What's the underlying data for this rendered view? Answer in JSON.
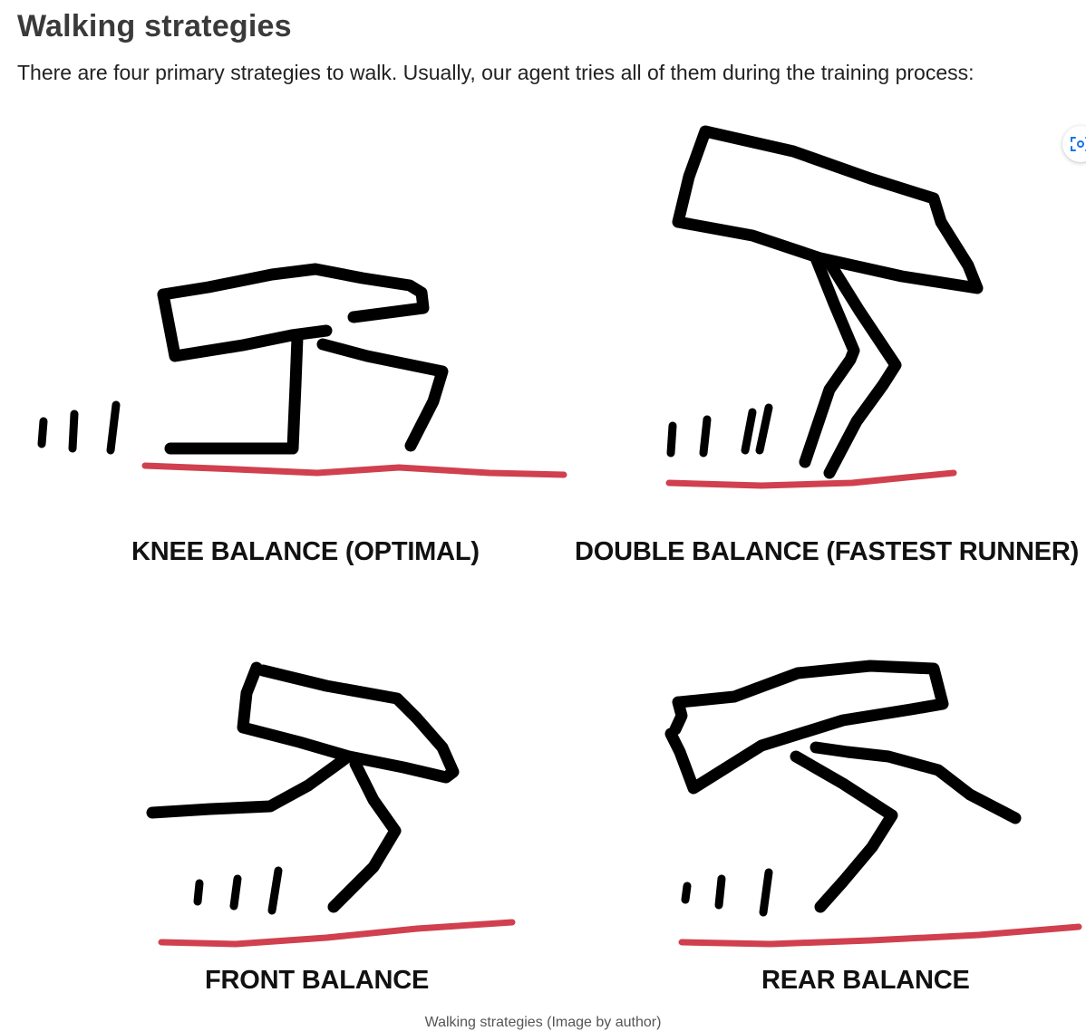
{
  "article": {
    "heading": "Walking strategies",
    "intro": "There are four primary strategies to walk. Usually, our agent tries all of them during the training process:"
  },
  "figure": {
    "panels": [
      {
        "label": "KNEE BALANCE (OPTIMAL)"
      },
      {
        "label": "DOUBLE BALANCE (FASTEST RUNNER)"
      },
      {
        "label": "FRONT BALANCE"
      },
      {
        "label": "REAR BALANCE"
      }
    ],
    "caption": "Walking strategies (Image by author)",
    "colors": {
      "stroke": "#000000",
      "ground": "#d0404e"
    },
    "icons": {
      "visual_search": "scan-search-icon"
    }
  }
}
